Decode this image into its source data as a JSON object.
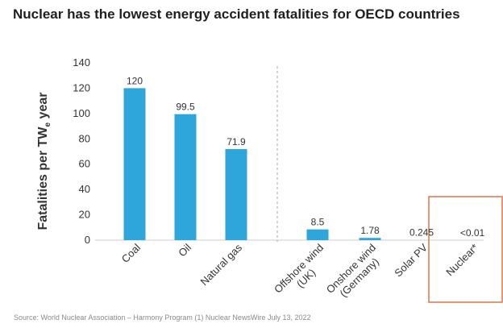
{
  "chart_data": {
    "type": "bar",
    "title": "Nuclear has the lowest energy accident fatalities for OECD countries",
    "ylabel_main": "Fatalities per TW",
    "ylabel_sub": "e",
    "ylabel_end": " year",
    "xlabel": "",
    "ylim": [
      0,
      140
    ],
    "yticks": [
      "0",
      "20",
      "40",
      "60",
      "80",
      "100",
      "120",
      "140"
    ],
    "categories": [
      [
        "Coal"
      ],
      [
        "Oil"
      ],
      [
        "Natural gas"
      ],
      [
        "Offshore wind",
        "(UK)"
      ],
      [
        "Onshore wind",
        "(Germany)"
      ],
      [
        "Solar PV"
      ],
      [
        "Nuclear*"
      ]
    ],
    "values": [
      120,
      99.5,
      71.9,
      8.5,
      1.78,
      0.245,
      0.01
    ],
    "data_labels": [
      "120",
      "99.5",
      "71.9",
      "8.5",
      "1.78",
      "0.245",
      "<0.01"
    ],
    "bar_color": "#2ea6dc",
    "highlight_color": "#e07b53",
    "highlighted_category": "Nuclear*",
    "grid": false
  },
  "footer": {
    "source": "Source: World Nuclear Association – Harmony Program (1) Nuclear NewsWire July 13, 2022"
  }
}
